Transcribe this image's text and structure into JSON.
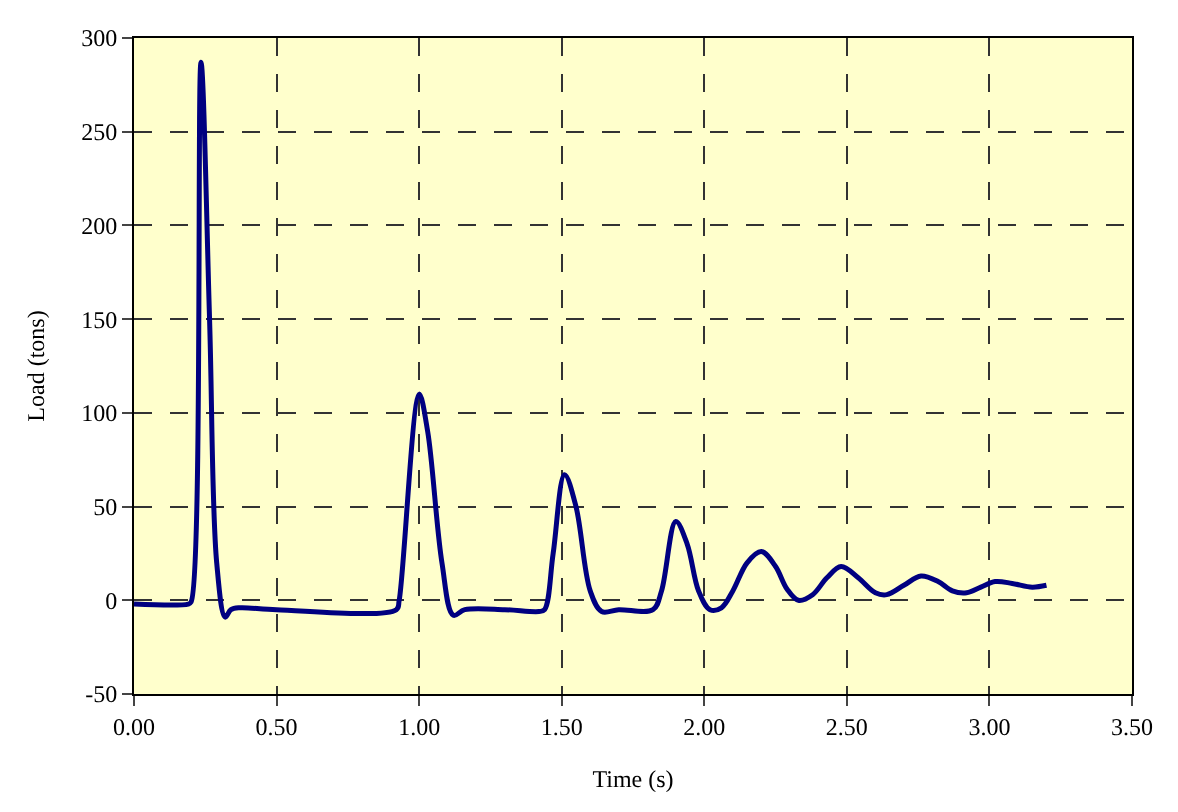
{
  "chart_data": {
    "type": "line",
    "xlabel": "Time (s)",
    "ylabel": "Load (tons)",
    "xlim": [
      0,
      3.5
    ],
    "xticks": [
      {
        "value": 0,
        "label": "0.00"
      },
      {
        "value": 0.5,
        "label": "0.50"
      },
      {
        "value": 1,
        "label": "1.00"
      },
      {
        "value": 1.5,
        "label": "1.50"
      },
      {
        "value": 2,
        "label": "2.00"
      },
      {
        "value": 2.5,
        "label": "2.50"
      },
      {
        "value": 3,
        "label": "3.00"
      },
      {
        "value": 3.5,
        "label": "3.50"
      }
    ],
    "ylim": [
      -50,
      300
    ],
    "yticks": [
      -50,
      0,
      50,
      100,
      150,
      200,
      250,
      300
    ],
    "grid": true,
    "marker": "none",
    "line_style": "solid",
    "series": [
      {
        "color": "#000080",
        "x": [
          0,
          0.19,
          0.2,
          0.235,
          0.265,
          0.29,
          0.32,
          0.34,
          0.37,
          0.5,
          0.92,
          0.93,
          1.0,
          1.03,
          1.08,
          1.12,
          1.16,
          1.3,
          1.42,
          1.44,
          1.47,
          1.51,
          1.55,
          1.6,
          1.64,
          1.7,
          1.82,
          1.85,
          1.9,
          1.94,
          1.98,
          2.02,
          2.06,
          2.1,
          2.15,
          2.2,
          2.25,
          2.29,
          2.33,
          2.38,
          2.43,
          2.48,
          2.54,
          2.6,
          2.64,
          2.7,
          2.76,
          2.82,
          2.87,
          2.92,
          2.97,
          3.02,
          3.08,
          3.15,
          3.2
        ],
        "values": [
          -2,
          -2,
          -1,
          287,
          150,
          20,
          -9,
          -5,
          -4,
          -5,
          -5,
          0,
          110,
          90,
          20,
          -8,
          -5,
          -5,
          -6,
          -5,
          25,
          67,
          50,
          5,
          -6,
          -5,
          -5,
          5,
          42,
          30,
          5,
          -5,
          -4,
          5,
          20,
          26,
          18,
          6,
          0,
          3,
          12,
          18,
          12,
          4,
          3,
          8,
          13,
          10,
          5,
          4,
          7,
          10,
          9,
          7,
          8
        ]
      }
    ]
  }
}
